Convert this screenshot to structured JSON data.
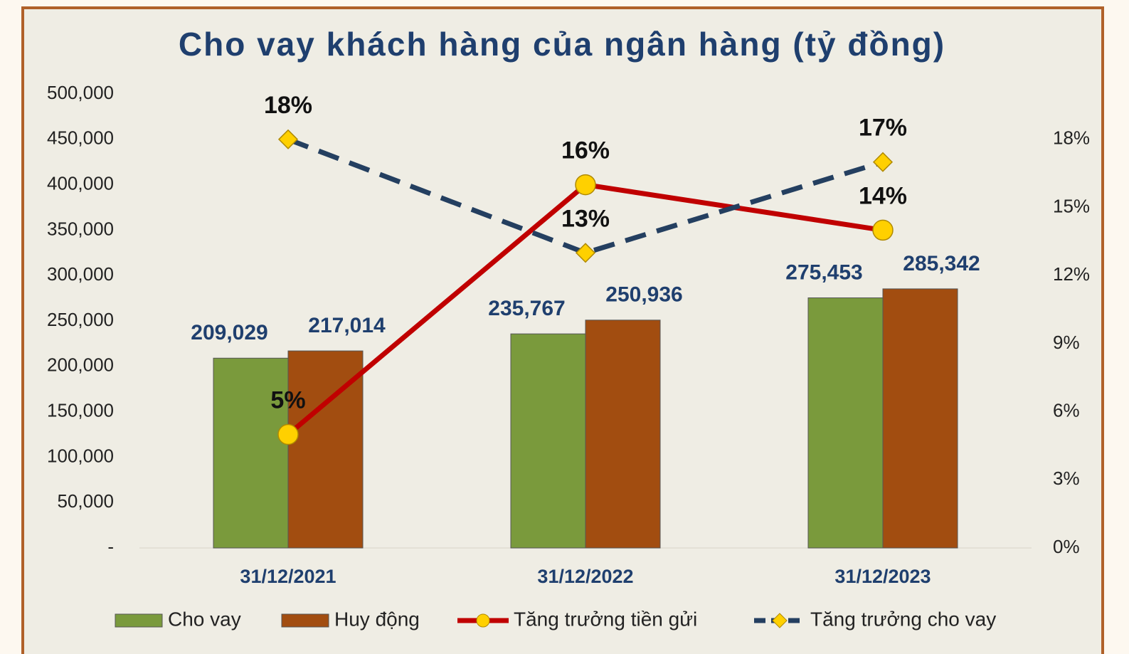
{
  "chart_data": {
    "type": "bar",
    "title": "Cho vay khách hàng của ngân hàng (tỷ đồng)",
    "categories": [
      "31/12/2021",
      "31/12/2022",
      "31/12/2023"
    ],
    "series": [
      {
        "name": "Cho vay",
        "type": "bar",
        "color": "#7a9a3c",
        "values": [
          209029,
          235767,
          275453
        ],
        "value_labels": [
          "209,029",
          "235,767",
          "275,453"
        ]
      },
      {
        "name": "Huy động",
        "type": "bar",
        "color": "#a24d10",
        "values": [
          217014,
          250936,
          285342
        ],
        "value_labels": [
          "217,014",
          "250,936",
          "285,342"
        ]
      },
      {
        "name": "Tăng trưởng tiền gửi",
        "type": "line",
        "axis": "y2",
        "color": "#c00000",
        "marker": "circle",
        "dashed": false,
        "values": [
          5,
          16,
          14
        ],
        "value_labels": [
          "5%",
          "16%",
          "14%"
        ]
      },
      {
        "name": "Tăng trưởng cho vay",
        "type": "line",
        "axis": "y2",
        "color": "#243f60",
        "marker": "diamond",
        "dashed": true,
        "values": [
          18,
          13,
          17
        ],
        "value_labels": [
          "18%",
          "13%",
          "17%"
        ]
      }
    ],
    "ylim": [
      0,
      500000
    ],
    "yticks": [
      {
        "value": 0,
        "label": "-"
      },
      {
        "value": 50000,
        "label": "50,000"
      },
      {
        "value": 100000,
        "label": "100,000"
      },
      {
        "value": 150000,
        "label": "150,000"
      },
      {
        "value": 200000,
        "label": "200,000"
      },
      {
        "value": 250000,
        "label": "250,000"
      },
      {
        "value": 300000,
        "label": "300,000"
      },
      {
        "value": 350000,
        "label": "350,000"
      },
      {
        "value": 400000,
        "label": "400,000"
      },
      {
        "value": 450000,
        "label": "450,000"
      },
      {
        "value": 500000,
        "label": "500,000"
      }
    ],
    "y2lim": [
      0,
      20
    ],
    "y2ticks": [
      {
        "value": 0,
        "label": "0%"
      },
      {
        "value": 3,
        "label": "3%"
      },
      {
        "value": 6,
        "label": "6%"
      },
      {
        "value": 9,
        "label": "9%"
      },
      {
        "value": 12,
        "label": "12%"
      },
      {
        "value": 15,
        "label": "15%"
      },
      {
        "value": 18,
        "label": "18%"
      }
    ],
    "grid": false,
    "legend": "bottom"
  }
}
